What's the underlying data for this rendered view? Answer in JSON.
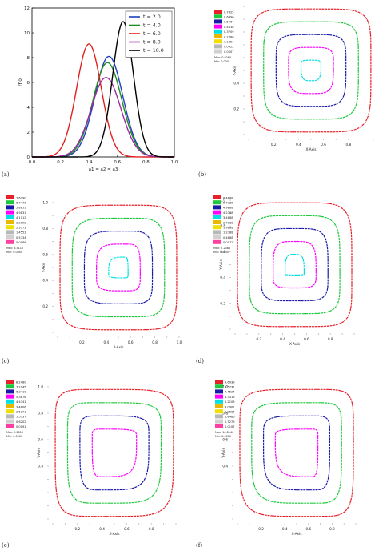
{
  "chart_data": [
    {
      "type": "line",
      "panel_label": "(a)",
      "ylabel": "rho",
      "xlabel": "a1 = a2 = a3",
      "xlim": [
        0.0,
        1.0
      ],
      "ylim": [
        0,
        12
      ],
      "x_ticks": [
        "0.0",
        "0.2",
        "0.4",
        "0.6",
        "0.8",
        "1.0"
      ],
      "y_ticks": [
        "0",
        "2",
        "4",
        "6",
        "8",
        "10",
        "12"
      ],
      "legend_position": "top-right",
      "series": [
        {
          "name": "t = 2.0",
          "color": "#1f3fbf",
          "center": 0.54,
          "sigma": 0.098,
          "peak": 8.1
        },
        {
          "name": "t = 4.0",
          "color": "#1e8c1e",
          "center": 0.53,
          "sigma": 0.101,
          "peak": 7.6
        },
        {
          "name": "t = 6.0",
          "color": "#e02020",
          "center": 0.4,
          "sigma": 0.087,
          "peak": 9.1
        },
        {
          "name": "t = 8.0",
          "color": "#9b2aa0",
          "center": 0.52,
          "sigma": 0.105,
          "peak": 6.4
        },
        {
          "name": "t = 10.0",
          "color": "#000000",
          "center": 0.64,
          "sigma": 0.073,
          "peak": 10.9
        }
      ]
    },
    {
      "type": "contour",
      "panel_label": "(b)",
      "xlabel": "X-Axis",
      "ylabel": "Y-Axis",
      "x_ticks": [
        "0.2",
        "0.4",
        "0.6",
        "0.8"
      ],
      "y_ticks": [
        "0.2",
        "0.4"
      ],
      "center": [
        0.5,
        0.55
      ],
      "levels": [
        0.02,
        0.12,
        0.22,
        0.32,
        0.42,
        0.52,
        0.62,
        0.72,
        0.82
      ],
      "legend": [
        "0.7425",
        "0.6496",
        "0.5567",
        "0.4638",
        "0.3709",
        "0.2780",
        "0.1851",
        "0.0922",
        "0.0007"
      ],
      "legend_note": [
        "Max: 0.9260",
        "Min: 0.000"
      ]
    },
    {
      "type": "contour",
      "panel_label": "(c)",
      "xlabel": "X-Axis",
      "ylabel": "Y-Axis",
      "x_ticks": [
        "0.2",
        "0.4",
        "0.6",
        "0.8",
        "1.0"
      ],
      "y_ticks": [
        "0.2",
        "0.4",
        "0.6",
        "0.8",
        "1.0"
      ],
      "center": [
        0.55,
        0.45
      ],
      "levels": [
        0.02,
        0.12,
        0.22,
        0.32,
        0.42,
        0.52,
        0.62,
        0.72
      ],
      "legend": [
        "7.6290",
        "6.7470",
        "5.8651",
        "4.9831",
        "4.1012",
        "3.2192",
        "2.3373",
        "1.4553",
        "0.5734",
        "0.0086"
      ],
      "legend_note": [
        "Max: 8.5110",
        "Min: 0.0000"
      ]
    },
    {
      "type": "contour",
      "panel_label": "(d)",
      "xlabel": "X-Axis",
      "ylabel": "Y-Axis",
      "x_ticks": [
        "0.2",
        "0.4",
        "0.6",
        "0.8"
      ],
      "y_ticks": [
        "0.2",
        "0.4",
        "0.6",
        "0.8",
        "1.0"
      ],
      "center": [
        0.5,
        0.43
      ],
      "levels": [
        0.02,
        0.12,
        0.22,
        0.32,
        0.42,
        0.52,
        0.62,
        0.72
      ],
      "legend": [
        "6.4888",
        "5.7388",
        "4.9888",
        "4.2388",
        "3.4888",
        "2.7388",
        "1.9888",
        "1.2388",
        "0.4888",
        "0.0072"
      ],
      "legend_note": [
        "Max: 7.2388",
        "Min: 0.0000"
      ]
    },
    {
      "type": "contour",
      "panel_label": "(e)",
      "xlabel": "X-Axis",
      "ylabel": "Y-Axis",
      "x_ticks": [
        "0.2",
        "0.4",
        "0.6",
        "0.8"
      ],
      "y_ticks": [
        "0.4",
        "0.6",
        "0.8",
        "1.0"
      ],
      "center": [
        0.4,
        0.62
      ],
      "levels": [
        0.02,
        0.12,
        0.22,
        0.32,
        0.42,
        0.52,
        0.62,
        0.72
      ],
      "legend": [
        "8.2480",
        "7.2945",
        "6.3410",
        "5.3876",
        "4.4341",
        "3.4806",
        "2.5271",
        "1.5737",
        "0.6202",
        "0.0091"
      ],
      "legend_note": [
        "Max: 9.2015",
        "Min: 0.0000"
      ]
    },
    {
      "type": "contour",
      "panel_label": "(f)",
      "xlabel": "X-Axis",
      "ylabel": "Y-Axis",
      "x_ticks": [
        "0.2",
        "0.4",
        "0.6",
        "0.8"
      ],
      "y_ticks": [
        "0.4",
        "0.6",
        "0.8",
        "1.0"
      ],
      "center": [
        0.62,
        0.62
      ],
      "levels": [
        0.02,
        0.12,
        0.22,
        0.32,
        0.42,
        0.52,
        0.62,
        0.72,
        0.82
      ],
      "legend": [
        "9.6939",
        "8.5731",
        "7.4524",
        "6.3316",
        "5.2109",
        "4.0901",
        "2.9694",
        "1.8486",
        "0.7279",
        "0.0107"
      ],
      "legend_note": [
        "Max: 10.8146",
        "Min: 0.0000"
      ]
    }
  ],
  "contour_colors": [
    "#e8202a",
    "#1ec83c",
    "#1a1aa8",
    "#ff00ff",
    "#00e0e0",
    "#e8b800",
    "#f0e000",
    "#b8b8b8",
    "#d0d0d0",
    "#ff40a0"
  ]
}
